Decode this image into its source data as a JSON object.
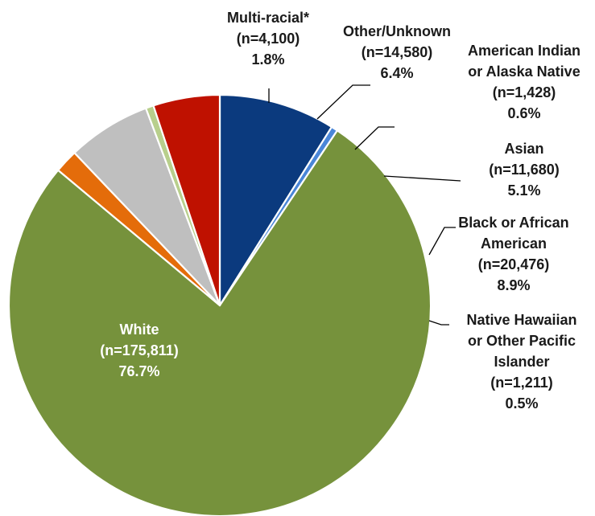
{
  "chart_data": {
    "type": "pie",
    "start_angle_deg": 90,
    "direction": "clockwise",
    "slices": [
      {
        "label": "Black or African American",
        "n": "20,476",
        "value": 8.9,
        "pct": "8.9%",
        "color": "#0B3A7E",
        "label_lines": [
          "Black or African",
          "American",
          "(n=20,476)",
          "8.9%"
        ]
      },
      {
        "label": "Native Hawaiian or Other Pacific Islander",
        "n": "1,211",
        "value": 0.5,
        "pct": "0.5%",
        "color": "#4A86D8",
        "label_lines": [
          "Native Hawaiian",
          "or Other Pacific",
          "Islander",
          "(n=1,211)",
          "0.5%"
        ]
      },
      {
        "label": "White",
        "n": "175,811",
        "value": 76.7,
        "pct": "76.7%",
        "color": "#76923C",
        "label_lines": [
          "White",
          "(n=175,811)",
          "76.7%"
        ]
      },
      {
        "label": "Multi-racial*",
        "n": "4,100",
        "value": 1.8,
        "pct": "1.8%",
        "color": "#E46C0A",
        "label_lines": [
          "Multi-racial*",
          "(n=4,100)",
          "1.8%"
        ]
      },
      {
        "label": "Other/Unknown",
        "n": "14,580",
        "value": 6.4,
        "pct": "6.4%",
        "color": "#BFBFBF",
        "label_lines": [
          "Other/Unknown",
          "(n=14,580)",
          "6.4%"
        ]
      },
      {
        "label": "American Indian or Alaska Native",
        "n": "1,428",
        "value": 0.6,
        "pct": "0.6%",
        "color": "#B8CF8C",
        "label_lines": [
          "American Indian",
          "or Alaska Native",
          "(n=1,428)",
          "0.6%"
        ]
      },
      {
        "label": "Asian",
        "n": "11,680",
        "value": 5.1,
        "pct": "5.1%",
        "color": "#BF1100",
        "label_lines": [
          "Asian",
          "(n=11,680)",
          "5.1%"
        ]
      }
    ]
  }
}
